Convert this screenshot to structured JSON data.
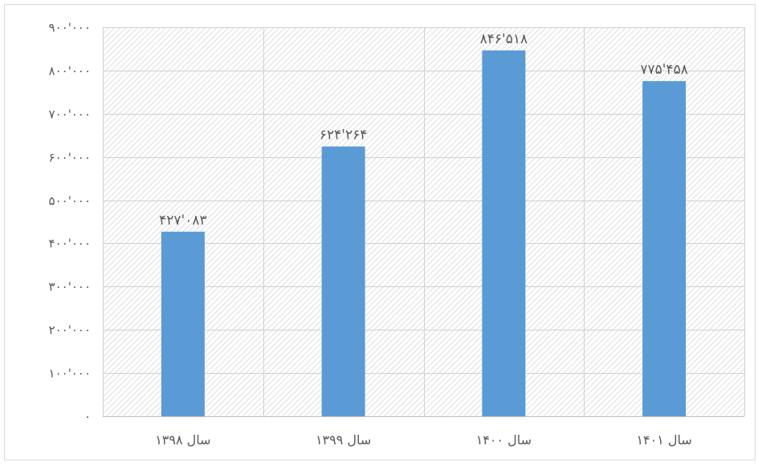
{
  "chart_data": {
    "type": "bar",
    "title": "",
    "xlabel": "",
    "ylabel": "",
    "categories": [
      "سال ۱۳۹۸",
      "سال ۱۳۹۹",
      "سال ۱۴۰۰",
      "سال ۱۴۰۱"
    ],
    "values": [
      427083,
      624264,
      846518,
      775458
    ],
    "value_labels": [
      "۴۲۷'۰۸۳",
      "۶۲۴'۲۶۴",
      "۸۴۶'۵۱۸",
      "۷۷۵'۴۵۸"
    ],
    "ylim": [
      0,
      900000
    ],
    "y_ticks": [
      0,
      100000,
      200000,
      300000,
      400000,
      500000,
      600000,
      700000,
      800000,
      900000
    ],
    "y_tick_labels": [
      "۰",
      "۱۰۰'۰۰۰",
      "۲۰۰'۰۰۰",
      "۳۰۰'۰۰۰",
      "۴۰۰'۰۰۰",
      "۵۰۰'۰۰۰",
      "۶۰۰'۰۰۰",
      "۷۰۰'۰۰۰",
      "۸۰۰'۰۰۰",
      "۹۰۰'۰۰۰"
    ],
    "grid": true,
    "legend": false,
    "colors": {
      "bar": "#5b9bd5",
      "text": "#595959",
      "grid": "#d0d0d0",
      "hatch": "#d9d9d9"
    }
  }
}
